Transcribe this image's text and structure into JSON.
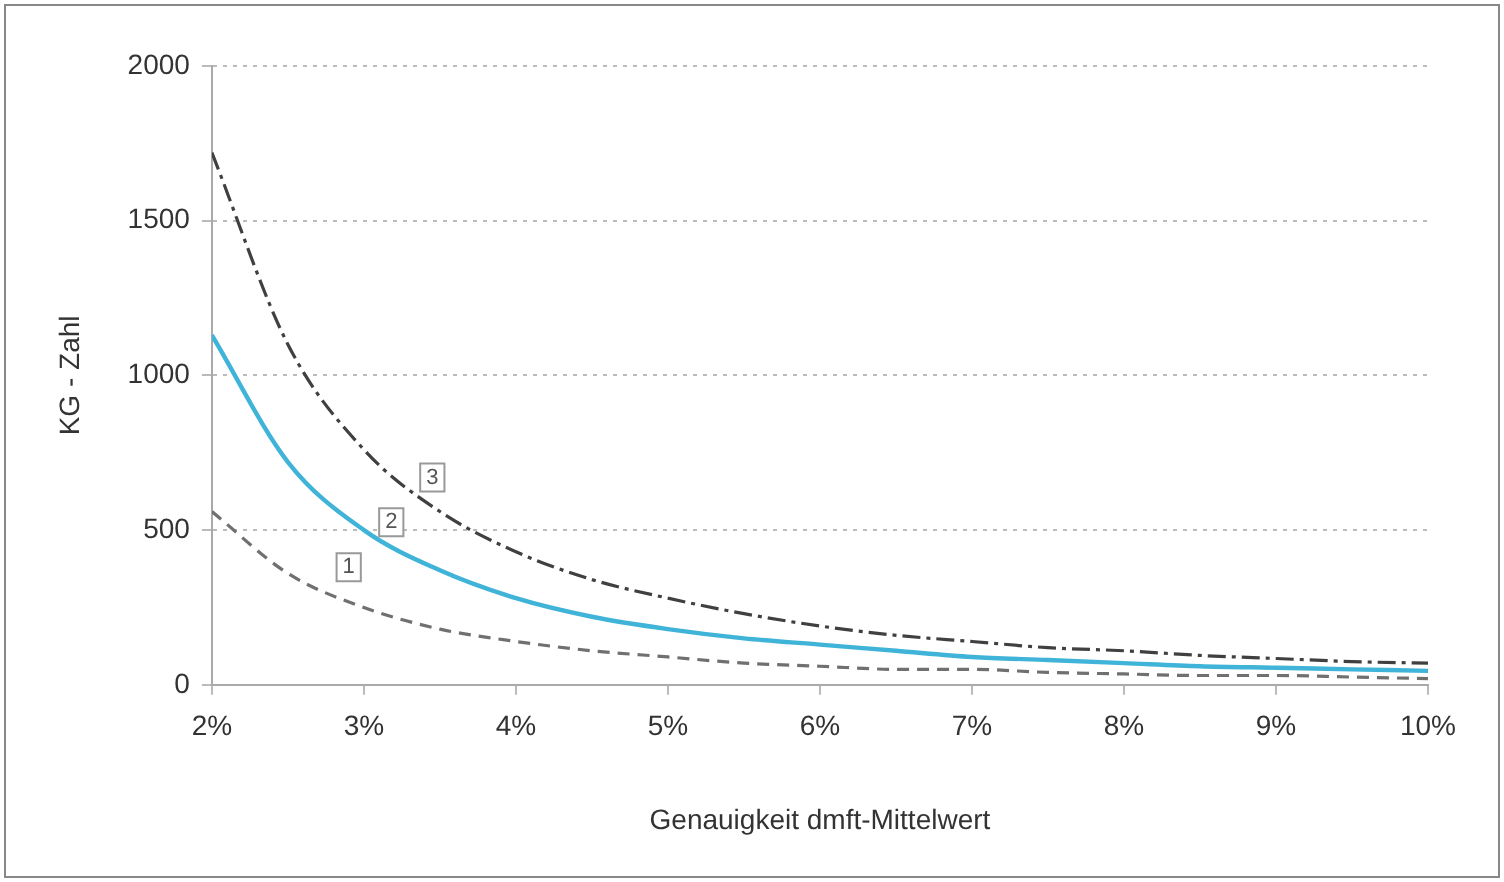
{
  "chart_data": {
    "type": "line",
    "xlabel": "Genauigkeit dmft-Mittelwert",
    "ylabel": "KG - Zahl",
    "x": [
      2,
      2.5,
      3,
      3.5,
      4,
      4.5,
      5,
      5.5,
      6,
      6.5,
      7,
      7.5,
      8,
      8.5,
      9,
      9.5,
      10
    ],
    "series": [
      {
        "color": "#707070",
        "line_style": "dashed",
        "values": [
          560,
          360,
          250,
          180,
          140,
          110,
          90,
          70,
          60,
          50,
          50,
          40,
          35,
          30,
          30,
          25,
          20
        ]
      },
      {
        "color": "#40b4d8",
        "line_style": "solid",
        "values": [
          1130,
          720,
          500,
          370,
          280,
          220,
          180,
          150,
          130,
          110,
          90,
          80,
          70,
          60,
          55,
          50,
          45
        ]
      },
      {
        "color": "#404040",
        "line_style": "dashed",
        "values": [
          1720,
          1100,
          760,
          560,
          430,
          340,
          280,
          230,
          190,
          160,
          140,
          120,
          110,
          95,
          85,
          75,
          70
        ]
      }
    ],
    "xlim": [
      2,
      10
    ],
    "xticks": [
      {
        "value": 2,
        "label": "2%"
      },
      {
        "value": 3,
        "label": "3%"
      },
      {
        "value": 4,
        "label": "4%"
      },
      {
        "value": 5,
        "label": "5%"
      },
      {
        "value": 6,
        "label": "6%"
      },
      {
        "value": 7,
        "label": "7%"
      },
      {
        "value": 8,
        "label": "8%"
      },
      {
        "value": 9,
        "label": "9%"
      },
      {
        "value": 10,
        "label": "10%"
      }
    ],
    "ylim": [
      0,
      2000
    ],
    "yticks": [
      0,
      500,
      1000,
      1500,
      2000
    ],
    "grid": "y",
    "legend": false,
    "marker": "none",
    "annotations": [
      {
        "text": "1",
        "x": 2.9,
        "y": 380
      },
      {
        "text": "2",
        "x": 3.18,
        "y": 525
      },
      {
        "text": "3",
        "x": 3.45,
        "y": 670
      }
    ]
  }
}
